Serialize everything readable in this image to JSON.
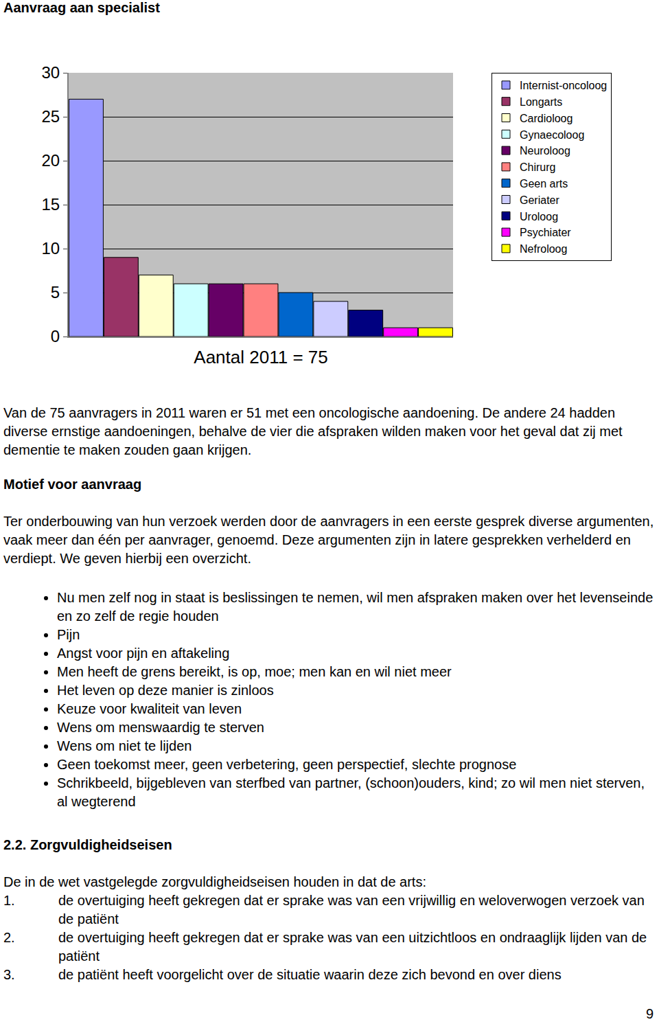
{
  "header": {
    "title": "Aanvraag aan specialist"
  },
  "chart_data": {
    "type": "bar",
    "categories": [
      "Internist-oncoloog",
      "Longarts",
      "Cardioloog",
      "Gynaecoloog",
      "Neuroloog",
      "Chirurg",
      "Geen arts",
      "Geriater",
      "Uroloog",
      "Psychiater",
      "Nefroloog"
    ],
    "values": [
      27,
      9,
      7,
      6,
      6,
      6,
      5,
      4,
      3,
      1,
      1
    ],
    "colors": [
      "#9999ff",
      "#993366",
      "#ffffcc",
      "#ccffff",
      "#660066",
      "#ff8080",
      "#0066cc",
      "#ccccff",
      "#000080",
      "#ff00ff",
      "#ffff00"
    ],
    "x_label": "Aantal 2011 = 75",
    "ylim": [
      0,
      30
    ],
    "yticks": [
      0,
      5,
      10,
      15,
      20,
      25,
      30
    ],
    "grid": true,
    "legend": "right",
    "tick_labels": "y"
  },
  "body": {
    "intro": "Van de 75 aanvragers in 2011 waren er 51 met een oncologische aandoening. De andere 24 hadden diverse ernstige aandoeningen, behalve de vier die afspraken wilden maken voor het geval dat zij met dementie te maken zouden gaan krijgen.",
    "sections": [
      {
        "title": "Motief voor aanvraag",
        "paragraph": "Ter onderbouwing van hun verzoek werden door de aanvragers in een eerste gesprek diverse argumenten, vaak meer dan één per aanvrager, genoemd. Deze argumenten zijn in latere gesprekken verhelderd en verdiept. We geven hierbij een overzicht.",
        "bullets": [
          "Nu men zelf nog in staat is beslissingen te nemen, wil men afspraken maken over het levenseinde en zo zelf de regie houden",
          "Pijn",
          "Angst voor pijn en aftakeling",
          "Men heeft de grens bereikt, is op, moe; men kan en wil niet meer",
          "Het leven op deze manier is zinloos",
          "Keuze voor kwaliteit van leven",
          "Wens om menswaardig te sterven",
          "Wens om niet te lijden",
          "Geen toekomst meer, geen verbetering, geen perspectief, slechte prognose",
          "Schrikbeeld, bijgebleven van sterfbed van partner, (schoon)ouders, kind; zo wil men niet sterven, al wegterend"
        ]
      },
      {
        "title": "2.2. Zorgvuldigheidseisen",
        "paragraph": "De in de wet vastgelegde zorgvuldigheidseisen houden in dat de arts:",
        "numbered": [
          {
            "number": "1.",
            "text": "de overtuiging heeft gekregen dat er sprake was van een vrijwillig en weloverwogen verzoek van de patiënt"
          },
          {
            "number": "2.",
            "text": "de overtuiging heeft gekregen dat er sprake was van een uitzichtloos en ondraaglijk lijden van de patiënt"
          },
          {
            "number": "3.",
            "text": "de patiënt heeft voorgelicht over de situatie waarin deze zich bevond en over diens"
          }
        ]
      }
    ]
  },
  "page_number": 9
}
